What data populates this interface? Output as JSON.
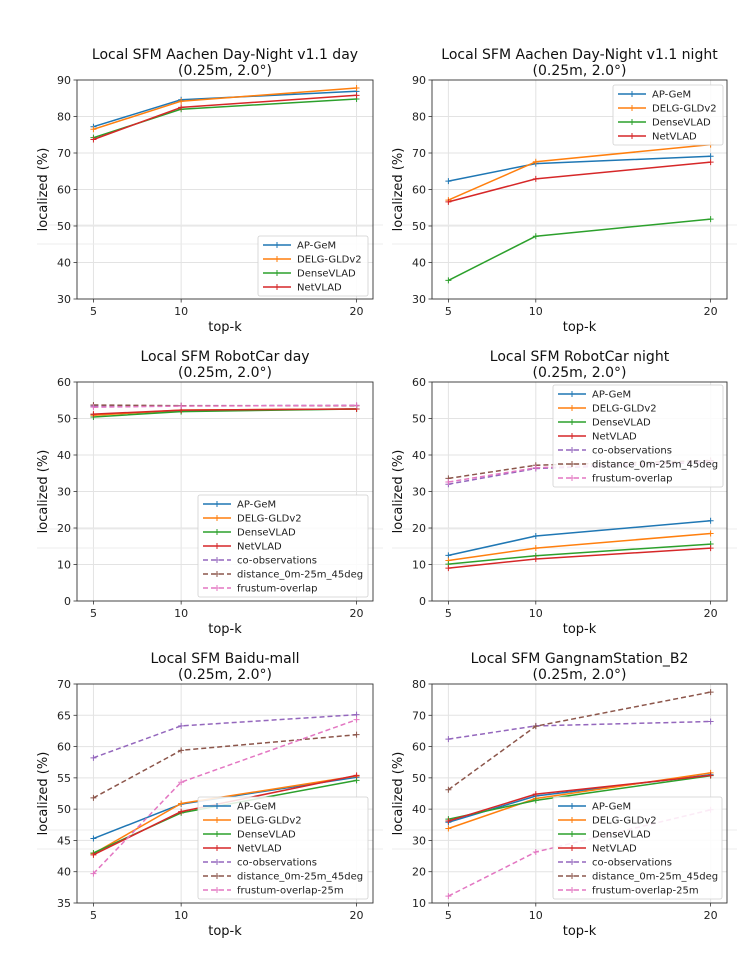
{
  "chart_data": [
    {
      "type": "line",
      "title": "Local SFM Aachen Day-Night v1.1 day",
      "subtitle": "(0.25m, 2.0°)",
      "xlabel": "top-k",
      "ylabel": "localized (%)",
      "x": [
        5,
        10,
        20
      ],
      "xticks": [
        "5",
        "10",
        "20"
      ],
      "ylim": [
        30,
        90
      ],
      "yticks": [
        30,
        40,
        50,
        60,
        70,
        80,
        90
      ],
      "grid": true,
      "legend_position": "lower-right",
      "series": [
        {
          "name": "AP-GeM",
          "color": "#1f77b4",
          "dashed": false,
          "values": [
            77.2,
            84.6,
            86.9
          ]
        },
        {
          "name": "DELG-GLDv2",
          "color": "#ff7f0e",
          "dashed": false,
          "values": [
            76.5,
            84.2,
            87.8
          ]
        },
        {
          "name": "DenseVLAD",
          "color": "#2ca02c",
          "dashed": false,
          "values": [
            74.2,
            82.0,
            84.8
          ]
        },
        {
          "name": "NetVLAD",
          "color": "#d62728",
          "dashed": false,
          "values": [
            73.7,
            82.5,
            85.8
          ]
        }
      ]
    },
    {
      "type": "line",
      "title": "Local SFM Aachen Day-Night v1.1 night",
      "subtitle": "(0.25m, 2.0°)",
      "xlabel": "top-k",
      "ylabel": "localized (%)",
      "x": [
        5,
        10,
        20
      ],
      "xticks": [
        "5",
        "10",
        "20"
      ],
      "ylim": [
        30,
        90
      ],
      "yticks": [
        30,
        40,
        50,
        60,
        70,
        80,
        90
      ],
      "grid": true,
      "legend_position": "upper-right",
      "series": [
        {
          "name": "AP-GeM",
          "color": "#1f77b4",
          "dashed": false,
          "values": [
            62.3,
            67.1,
            69.1
          ]
        },
        {
          "name": "DELG-GLDv2",
          "color": "#ff7f0e",
          "dashed": false,
          "values": [
            57.1,
            67.6,
            72.3
          ]
        },
        {
          "name": "DenseVLAD",
          "color": "#2ca02c",
          "dashed": false,
          "values": [
            35.1,
            47.2,
            51.9
          ]
        },
        {
          "name": "NetVLAD",
          "color": "#d62728",
          "dashed": false,
          "values": [
            56.6,
            62.9,
            67.5
          ]
        }
      ]
    },
    {
      "type": "line",
      "title": "Local SFM RobotCar day",
      "subtitle": "(0.25m, 2.0°)",
      "xlabel": "top-k",
      "ylabel": "localized (%)",
      "x": [
        5,
        10,
        20
      ],
      "xticks": [
        "5",
        "10",
        "20"
      ],
      "ylim": [
        0,
        60
      ],
      "yticks": [
        0,
        10,
        20,
        30,
        40,
        50,
        60
      ],
      "grid": true,
      "legend_position": "lower-right",
      "series": [
        {
          "name": "AP-GeM",
          "color": "#1f77b4",
          "dashed": false,
          "values": [
            51.0,
            52.2,
            52.6
          ]
        },
        {
          "name": "DELG-GLDv2",
          "color": "#ff7f0e",
          "dashed": false,
          "values": [
            50.9,
            52.3,
            52.6
          ]
        },
        {
          "name": "DenseVLAD",
          "color": "#2ca02c",
          "dashed": false,
          "values": [
            50.4,
            51.9,
            52.6
          ]
        },
        {
          "name": "NetVLAD",
          "color": "#d62728",
          "dashed": false,
          "values": [
            51.2,
            52.3,
            52.6
          ]
        },
        {
          "name": "co-observations",
          "color": "#9467bd",
          "dashed": true,
          "values": [
            53.4,
            53.5,
            53.6
          ]
        },
        {
          "name": "distance_0m-25m_45deg",
          "color": "#8c564b",
          "dashed": true,
          "values": [
            53.7,
            53.5,
            53.5
          ]
        },
        {
          "name": "frustum-overlap",
          "color": "#e377c2",
          "dashed": true,
          "values": [
            53.1,
            53.4,
            53.6
          ]
        }
      ]
    },
    {
      "type": "line",
      "title": "Local SFM RobotCar night",
      "subtitle": "(0.25m, 2.0°)",
      "xlabel": "top-k",
      "ylabel": "localized (%)",
      "x": [
        5,
        10,
        20
      ],
      "xticks": [
        "5",
        "10",
        "20"
      ],
      "ylim": [
        0,
        60
      ],
      "yticks": [
        0,
        10,
        20,
        30,
        40,
        50,
        60
      ],
      "grid": true,
      "legend_position": "upper-right",
      "series": [
        {
          "name": "AP-GeM",
          "color": "#1f77b4",
          "dashed": false,
          "values": [
            12.5,
            17.8,
            22.0
          ]
        },
        {
          "name": "DELG-GLDv2",
          "color": "#ff7f0e",
          "dashed": false,
          "values": [
            11.1,
            14.5,
            18.5
          ]
        },
        {
          "name": "DenseVLAD",
          "color": "#2ca02c",
          "dashed": false,
          "values": [
            10.1,
            12.4,
            15.6
          ]
        },
        {
          "name": "NetVLAD",
          "color": "#d62728",
          "dashed": false,
          "values": [
            9.0,
            11.5,
            14.5
          ]
        },
        {
          "name": "co-observations",
          "color": "#9467bd",
          "dashed": true,
          "values": [
            32.0,
            36.3,
            38.0
          ]
        },
        {
          "name": "distance_0m-25m_45deg",
          "color": "#8c564b",
          "dashed": true,
          "values": [
            33.6,
            37.2,
            38.5
          ]
        },
        {
          "name": "frustum-overlap",
          "color": "#e377c2",
          "dashed": true,
          "values": [
            32.6,
            36.5,
            38.2
          ]
        }
      ]
    },
    {
      "type": "line",
      "title": "Local SFM Baidu-mall",
      "subtitle": "(0.25m, 2.0°)",
      "xlabel": "top-k",
      "ylabel": "localized (%)",
      "x": [
        5,
        10,
        20
      ],
      "xticks": [
        "5",
        "10",
        "20"
      ],
      "ylim": [
        35,
        70
      ],
      "yticks": [
        35,
        40,
        45,
        50,
        55,
        60,
        65,
        70
      ],
      "grid": true,
      "legend_position": "lower-right",
      "series": [
        {
          "name": "AP-GeM",
          "color": "#1f77b4",
          "dashed": false,
          "values": [
            45.3,
            50.8,
            55.1
          ]
        },
        {
          "name": "DELG-GLDv2",
          "color": "#ff7f0e",
          "dashed": false,
          "values": [
            42.9,
            50.9,
            55.3
          ]
        },
        {
          "name": "DenseVLAD",
          "color": "#2ca02c",
          "dashed": false,
          "values": [
            43.0,
            49.4,
            54.6
          ]
        },
        {
          "name": "NetVLAD",
          "color": "#d62728",
          "dashed": false,
          "values": [
            42.7,
            49.6,
            55.4
          ]
        },
        {
          "name": "co-observations",
          "color": "#9467bd",
          "dashed": true,
          "values": [
            58.2,
            63.3,
            65.1
          ]
        },
        {
          "name": "distance_0m-25m_45deg",
          "color": "#8c564b",
          "dashed": true,
          "values": [
            51.8,
            59.4,
            61.9
          ]
        },
        {
          "name": "frustum-overlap-25m",
          "color": "#e377c2",
          "dashed": true,
          "values": [
            39.7,
            54.3,
            64.3
          ]
        }
      ]
    },
    {
      "type": "line",
      "title": "Local SFM GangnamStation_B2",
      "subtitle": "(0.25m, 2.0°)",
      "xlabel": "top-k",
      "ylabel": "localized (%)",
      "x": [
        5,
        10,
        20
      ],
      "xticks": [
        "5",
        "10",
        "20"
      ],
      "ylim": [
        10,
        80
      ],
      "yticks": [
        10,
        20,
        30,
        40,
        50,
        60,
        70,
        80
      ],
      "grid": true,
      "legend_position": "lower-right",
      "series": [
        {
          "name": "AP-GeM",
          "color": "#1f77b4",
          "dashed": false,
          "values": [
            35.8,
            44.2,
            51.0
          ]
        },
        {
          "name": "DELG-GLDv2",
          "color": "#ff7f0e",
          "dashed": false,
          "values": [
            33.8,
            43.4,
            51.6
          ]
        },
        {
          "name": "DenseVLAD",
          "color": "#2ca02c",
          "dashed": false,
          "values": [
            36.8,
            42.8,
            50.7
          ]
        },
        {
          "name": "NetVLAD",
          "color": "#d62728",
          "dashed": false,
          "values": [
            36.2,
            44.8,
            50.8
          ]
        },
        {
          "name": "co-observations",
          "color": "#9467bd",
          "dashed": true,
          "values": [
            62.4,
            66.6,
            68.0
          ]
        },
        {
          "name": "distance_0m-25m_45deg",
          "color": "#8c564b",
          "dashed": true,
          "values": [
            46.2,
            66.5,
            77.4
          ]
        },
        {
          "name": "frustum-overlap-25m",
          "color": "#e377c2",
          "dashed": true,
          "values": [
            12.2,
            26.3,
            39.8
          ]
        }
      ]
    }
  ]
}
